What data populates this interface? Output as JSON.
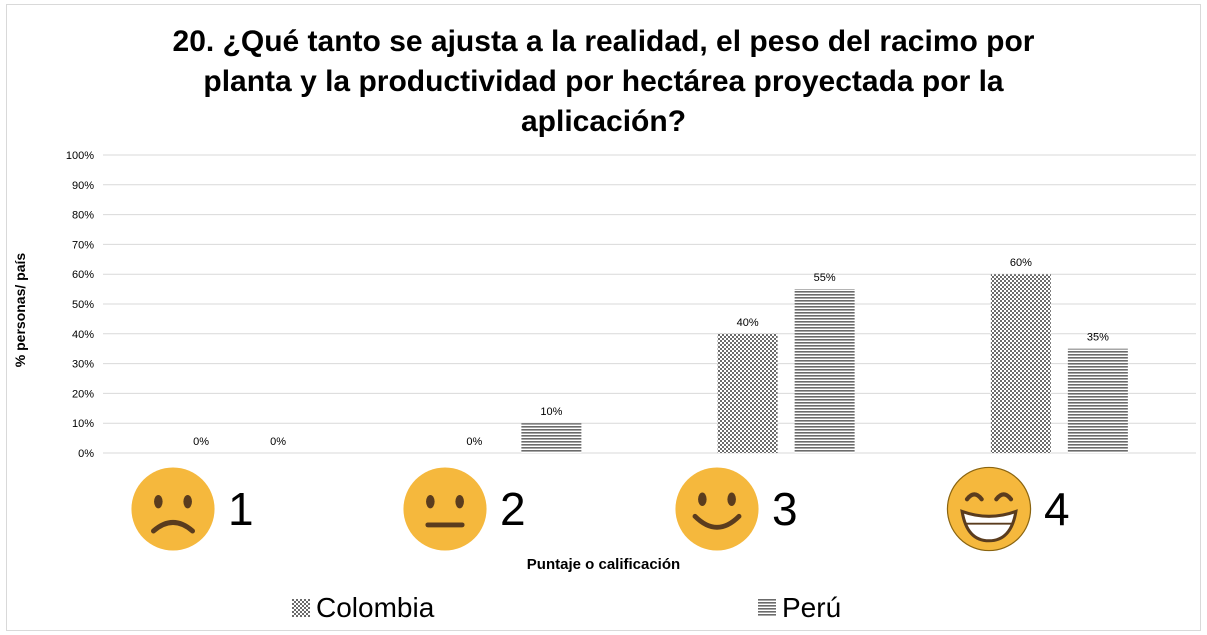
{
  "chart_data": {
    "type": "bar",
    "title_lines": [
      "20. ¿Qué tanto se ajusta a la realidad, el peso del racimo por",
      "planta y la productividad por hectárea proyectada por la",
      "aplicación?"
    ],
    "xlabel": "Puntaje o calificación",
    "ylabel": "% personas/ país",
    "ylim": [
      0,
      100
    ],
    "yticks": [
      "0%",
      "10%",
      "20%",
      "30%",
      "40%",
      "50%",
      "60%",
      "70%",
      "80%",
      "90%",
      "100%"
    ],
    "categories": [
      "1",
      "2",
      "3",
      "4"
    ],
    "category_icons": [
      "frowning-face",
      "neutral-face",
      "slightly-smiling-face",
      "grinning-face"
    ],
    "series": [
      {
        "name": "Colombia",
        "values": [
          0,
          0,
          40,
          60
        ],
        "labels": [
          "0%",
          "0%",
          "40%",
          "60%"
        ],
        "pattern": "checkerboard",
        "color": "#595959"
      },
      {
        "name": "Perú",
        "values": [
          0,
          10,
          55,
          35
        ],
        "labels": [
          "0%",
          "10%",
          "55%",
          "35%"
        ],
        "pattern": "horizontal-lines",
        "color": "#595959"
      }
    ],
    "grid": true,
    "legend": "bottom"
  }
}
